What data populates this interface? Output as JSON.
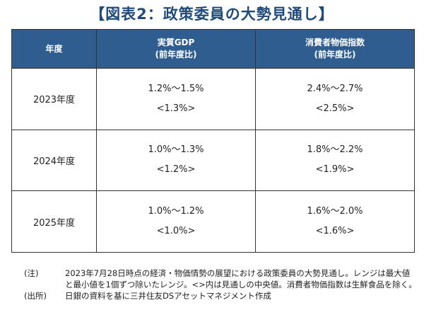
{
  "title": "【図表2：政策委員の大勢見通し】",
  "table": {
    "headers": {
      "year": "年度",
      "gdp_line1": "実質GDP",
      "gdp_line2": "(前年度比)",
      "cpi_line1": "消費者物価指数",
      "cpi_line2": "(前年度比)"
    },
    "rows": [
      {
        "year": "2023年度",
        "gdp_range": "1.2%～1.5%",
        "gdp_mid": "<1.3%>",
        "cpi_range": "2.4%～2.7%",
        "cpi_mid": "<2.5%>"
      },
      {
        "year": "2024年度",
        "gdp_range": "1.0%～1.3%",
        "gdp_mid": "<1.2%>",
        "cpi_range": "1.8%～2.2%",
        "cpi_mid": "<1.9%>"
      },
      {
        "year": "2025年度",
        "gdp_range": "1.0%～1.2%",
        "gdp_mid": "<1.0%>",
        "cpi_range": "1.6%～2.0%",
        "cpi_mid": "<1.6%>"
      }
    ]
  },
  "notes": {
    "note_label": "(注)",
    "note_text": "2023年7月28日時点の経済・物価情勢の展望における政策委員の大勢見通し。レンジは最大値と最小値を1個ずつ除いたレンジ。<>内は見通しの中央値。消費者物価指数は生鮮食品を除く。",
    "source_label": "(出所)",
    "source_text": "日銀の資料を基に三井住友DSアセットマネジメント作成"
  }
}
